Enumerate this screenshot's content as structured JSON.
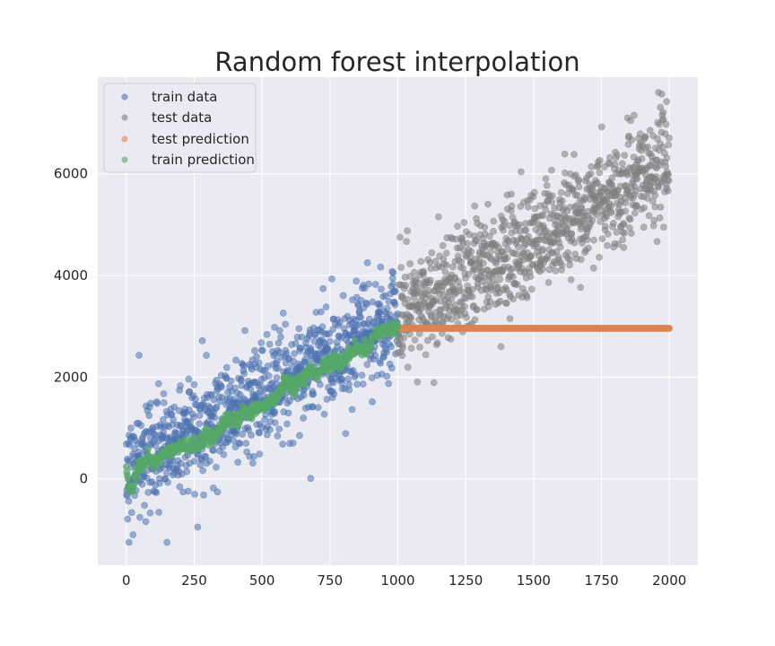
{
  "chart_data": {
    "type": "scatter",
    "title": "Random forest interpolation",
    "xlabel": "",
    "ylabel": "",
    "xlim": [
      -105,
      2105
    ],
    "ylim": [
      -1700,
      7900
    ],
    "xticks": [
      0,
      250,
      500,
      750,
      1000,
      1250,
      1500,
      1750,
      2000
    ],
    "yticks": [
      0,
      2000,
      4000,
      6000
    ],
    "grid": true,
    "legend_position": "top-left",
    "background": "#eaeaf2",
    "series": [
      {
        "name": "train data",
        "color": "#4c72b0",
        "marker_size": "small",
        "model": {
          "x_range": [
            0,
            999
          ],
          "trend": "linear",
          "y_at_start": 200,
          "y_at_end": 3200,
          "noise_sd": 520
        },
        "points": [
          [
            47,
            2430
          ],
          [
            263,
            -950
          ],
          [
            679,
            10
          ],
          [
            808,
            890
          ],
          [
            888,
            4250
          ],
          [
            150,
            -1250
          ],
          [
            10,
            -1250
          ],
          [
            25,
            -1100
          ]
        ]
      },
      {
        "name": "test data",
        "color": "#808080",
        "marker_size": "small",
        "model": {
          "x_range": [
            1000,
            1999
          ],
          "trend": "linear",
          "y_at_start": 3200,
          "y_at_end": 6200,
          "noise_sd": 520
        },
        "points": [
          [
            1990,
            7420
          ],
          [
            1380,
            2600
          ],
          [
            1870,
            7150
          ]
        ]
      },
      {
        "name": "test prediction",
        "color": "#dd8452",
        "marker_size": "small",
        "points": [
          [
            1000,
            2960
          ],
          [
            1200,
            2960
          ],
          [
            1400,
            2960
          ],
          [
            1600,
            2960
          ],
          [
            1800,
            2960
          ],
          [
            2000,
            2960
          ]
        ]
      },
      {
        "name": "train prediction",
        "color": "#55a868",
        "marker_size": "small",
        "points": [
          [
            0,
            250
          ],
          [
            10,
            -150
          ],
          [
            20,
            -200
          ],
          [
            40,
            150
          ],
          [
            60,
            250
          ],
          [
            80,
            400
          ],
          [
            100,
            300
          ],
          [
            130,
            450
          ],
          [
            160,
            550
          ],
          [
            200,
            600
          ],
          [
            250,
            700
          ],
          [
            300,
            850
          ],
          [
            330,
            900
          ],
          [
            350,
            1050
          ],
          [
            380,
            1150
          ],
          [
            400,
            1100
          ],
          [
            430,
            1300
          ],
          [
            470,
            1350
          ],
          [
            500,
            1400
          ],
          [
            530,
            1500
          ],
          [
            560,
            1650
          ],
          [
            580,
            1850
          ],
          [
            600,
            1900
          ],
          [
            620,
            1800
          ],
          [
            650,
            2000
          ],
          [
            680,
            2150
          ],
          [
            700,
            2050
          ],
          [
            730,
            2250
          ],
          [
            760,
            2300
          ],
          [
            790,
            2250
          ],
          [
            820,
            2500
          ],
          [
            850,
            2600
          ],
          [
            880,
            2550
          ],
          [
            900,
            2650
          ],
          [
            920,
            2850
          ],
          [
            950,
            2900
          ],
          [
            980,
            2950
          ],
          [
            999,
            3000
          ]
        ]
      }
    ]
  }
}
